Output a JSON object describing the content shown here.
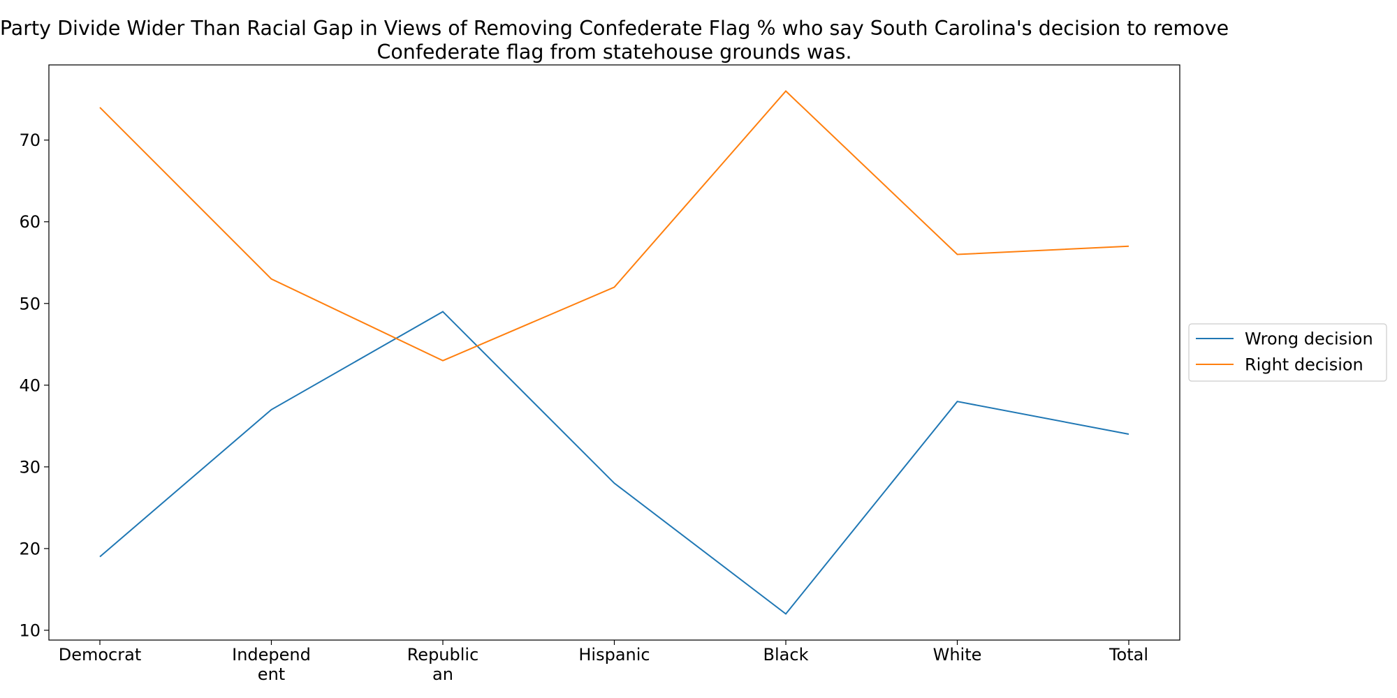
{
  "chart_data": {
    "type": "line",
    "title_lines": [
      "Party Divide Wider Than Racial Gap in Views of Removing Confederate Flag % who say South Carolina's decision to remove",
      "Confederate flag from statehouse grounds was."
    ],
    "xlabel": "",
    "ylabel": "",
    "categories": [
      [
        "Democrat"
      ],
      [
        "Independ",
        "ent"
      ],
      [
        "Republic",
        "an"
      ],
      [
        "Hispanic"
      ],
      [
        "Black"
      ],
      [
        "White"
      ],
      [
        "Total"
      ]
    ],
    "series": [
      {
        "name": "Wrong decision",
        "color": "#1f77b4",
        "values": [
          19,
          37,
          49,
          28,
          12,
          38,
          34
        ]
      },
      {
        "name": "Right decision",
        "color": "#ff7f0e",
        "values": [
          74,
          53,
          43,
          52,
          76,
          56,
          57
        ]
      }
    ],
    "yticks": [
      10,
      20,
      30,
      40,
      50,
      60,
      70
    ],
    "ylim": [
      8.8,
      79.2
    ],
    "grid": false,
    "legend_position": "right"
  }
}
